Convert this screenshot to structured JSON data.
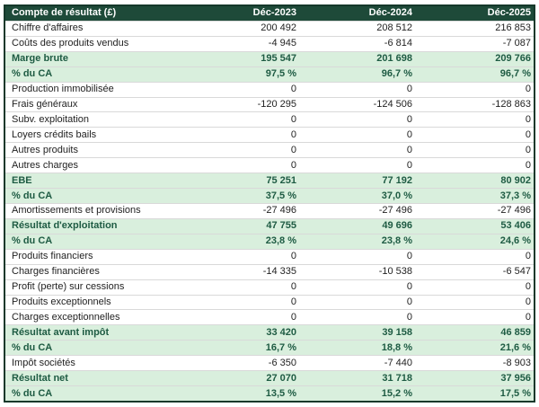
{
  "colors": {
    "header_bg": "#1e4a39",
    "header_text": "#ffffff",
    "highlight_bg": "#d9efdd",
    "highlight_text": "#1e5b43",
    "body_text": "#222222",
    "border": "#15382b",
    "row_divider": "#d9d9d9"
  },
  "table": {
    "columns": [
      "Compte de résultat (£)",
      "Déc-2023",
      "Déc-2024",
      "Déc-2025"
    ],
    "rows": [
      {
        "label": "Chiffre d'affaires",
        "values": [
          "200 492",
          "208 512",
          "216 853"
        ],
        "highlight": false
      },
      {
        "label": "Coûts des produits vendus",
        "values": [
          "-4 945",
          "-6 814",
          "-7 087"
        ],
        "highlight": false
      },
      {
        "label": "Marge brute",
        "values": [
          "195 547",
          "201 698",
          "209 766"
        ],
        "highlight": true
      },
      {
        "label": "% du CA",
        "values": [
          "97,5 %",
          "96,7 %",
          "96,7 %"
        ],
        "highlight": true
      },
      {
        "label": "Production immobilisée",
        "values": [
          "0",
          "0",
          "0"
        ],
        "highlight": false
      },
      {
        "label": "Frais généraux",
        "values": [
          "-120 295",
          "-124 506",
          "-128 863"
        ],
        "highlight": false
      },
      {
        "label": "Subv. exploitation",
        "values": [
          "0",
          "0",
          "0"
        ],
        "highlight": false
      },
      {
        "label": "Loyers crédits bails",
        "values": [
          "0",
          "0",
          "0"
        ],
        "highlight": false
      },
      {
        "label": "Autres produits",
        "values": [
          "0",
          "0",
          "0"
        ],
        "highlight": false
      },
      {
        "label": "Autres charges",
        "values": [
          "0",
          "0",
          "0"
        ],
        "highlight": false
      },
      {
        "label": "EBE",
        "values": [
          "75 251",
          "77 192",
          "80 902"
        ],
        "highlight": true
      },
      {
        "label": "% du CA",
        "values": [
          "37,5 %",
          "37,0 %",
          "37,3 %"
        ],
        "highlight": true
      },
      {
        "label": "Amortissements et provisions",
        "values": [
          "-27 496",
          "-27 496",
          "-27 496"
        ],
        "highlight": false
      },
      {
        "label": "Résultat d'exploitation",
        "values": [
          "47 755",
          "49 696",
          "53 406"
        ],
        "highlight": true
      },
      {
        "label": "% du CA",
        "values": [
          "23,8 %",
          "23,8 %",
          "24,6 %"
        ],
        "highlight": true
      },
      {
        "label": "Produits financiers",
        "values": [
          "0",
          "0",
          "0"
        ],
        "highlight": false
      },
      {
        "label": "Charges financières",
        "values": [
          "-14 335",
          "-10 538",
          "-6 547"
        ],
        "highlight": false
      },
      {
        "label": "Profit (perte) sur cessions",
        "values": [
          "0",
          "0",
          "0"
        ],
        "highlight": false
      },
      {
        "label": "Produits exceptionnels",
        "values": [
          "0",
          "0",
          "0"
        ],
        "highlight": false
      },
      {
        "label": "Charges exceptionnelles",
        "values": [
          "0",
          "0",
          "0"
        ],
        "highlight": false
      },
      {
        "label": "Résultat avant impôt",
        "values": [
          "33 420",
          "39 158",
          "46 859"
        ],
        "highlight": true
      },
      {
        "label": "% du CA",
        "values": [
          "16,7 %",
          "18,8 %",
          "21,6 %"
        ],
        "highlight": true
      },
      {
        "label": "Impôt sociétés",
        "values": [
          "-6 350",
          "-7 440",
          "-8 903"
        ],
        "highlight": false
      },
      {
        "label": "Résultat net",
        "values": [
          "27 070",
          "31 718",
          "37 956"
        ],
        "highlight": true
      },
      {
        "label": "% du CA",
        "values": [
          "13,5 %",
          "15,2 %",
          "17,5 %"
        ],
        "highlight": true
      }
    ]
  },
  "chart_data": {
    "type": "table",
    "title": "Compte de résultat (£)",
    "columns": [
      "Compte de résultat (£)",
      "Déc-2023",
      "Déc-2024",
      "Déc-2025"
    ],
    "rows": [
      [
        "Chiffre d'affaires",
        200492,
        208512,
        216853
      ],
      [
        "Coûts des produits vendus",
        -4945,
        -6814,
        -7087
      ],
      [
        "Marge brute",
        195547,
        201698,
        209766
      ],
      [
        "% du CA (marge brute)",
        97.5,
        96.7,
        96.7
      ],
      [
        "Production immobilisée",
        0,
        0,
        0
      ],
      [
        "Frais généraux",
        -120295,
        -124506,
        -128863
      ],
      [
        "Subv. exploitation",
        0,
        0,
        0
      ],
      [
        "Loyers crédits bails",
        0,
        0,
        0
      ],
      [
        "Autres produits",
        0,
        0,
        0
      ],
      [
        "Autres charges",
        0,
        0,
        0
      ],
      [
        "EBE",
        75251,
        77192,
        80902
      ],
      [
        "% du CA (EBE)",
        37.5,
        37.0,
        37.3
      ],
      [
        "Amortissements et provisions",
        -27496,
        -27496,
        -27496
      ],
      [
        "Résultat d'exploitation",
        47755,
        49696,
        53406
      ],
      [
        "% du CA (résultat d'exploitation)",
        23.8,
        23.8,
        24.6
      ],
      [
        "Produits financiers",
        0,
        0,
        0
      ],
      [
        "Charges financières",
        -14335,
        -10538,
        -6547
      ],
      [
        "Profit (perte) sur cessions",
        0,
        0,
        0
      ],
      [
        "Produits exceptionnels",
        0,
        0,
        0
      ],
      [
        "Charges exceptionnelles",
        0,
        0,
        0
      ],
      [
        "Résultat avant impôt",
        33420,
        39158,
        46859
      ],
      [
        "% du CA (résultat avant impôt)",
        16.7,
        18.8,
        21.6
      ],
      [
        "Impôt sociétés",
        -6350,
        -7440,
        -8903
      ],
      [
        "Résultat net",
        27070,
        31718,
        37956
      ],
      [
        "% du CA (résultat net)",
        13.5,
        15.2,
        17.5
      ]
    ]
  }
}
